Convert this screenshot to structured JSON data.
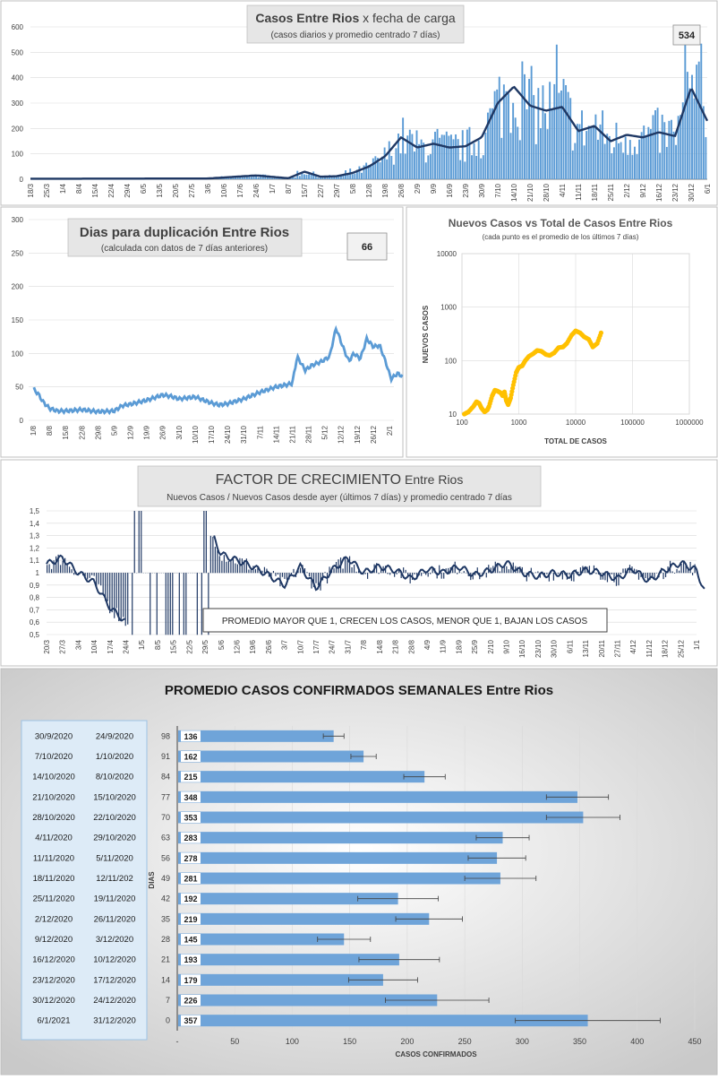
{
  "panel1": {
    "title_a": "Casos  Entre Rios",
    "title_b": " x fecha de carga",
    "subtitle": "(casos diarios y promedio  centrado 7 días)",
    "badge": "534"
  },
  "panel2": {
    "title": "Dias para duplicación Entre Rios",
    "subtitle": "(calculada con datos de 7 días anteriores)",
    "badge": "66"
  },
  "panel3": {
    "title": "Nuevos Casos vs Total de Casos Entre Rios",
    "subtitle": "(cada punto es el promedio de los últimos 7 días)",
    "xlabel": "TOTAL DE CASOS",
    "ylabel": "NUEVOS  CASOS"
  },
  "panel4": {
    "title_a": "FACTOR DE CRECIMIENTO",
    "title_b": " Entre Rios",
    "subtitle": "Nuevos Casos  / Nuevos Casos desde ayer (últimos 7 días) y promedio  centrado 7 días",
    "note": "PROMEDIO MAYOR QUE 1, CRECEN LOS CASOS, MENOR QUE 1, BAJAN LOS CASOS"
  },
  "panel5": {
    "title": "PROMEDIO CASOS CONFIRMADOS SEMANALES Entre Rios",
    "xlabel": "CASOS CONFIRMADOS",
    "ylabel": "DIAS",
    "date_pairs": [
      [
        "30/9/2020",
        "24/9/2020"
      ],
      [
        "7/10/2020",
        "1/10/2020"
      ],
      [
        "14/10/2020",
        "8/10/2020"
      ],
      [
        "21/10/2020",
        "15/10/2020"
      ],
      [
        "28/10/2020",
        "22/10/2020"
      ],
      [
        "4/11/2020",
        "29/10/2020"
      ],
      [
        "11/11/2020",
        "5/11/2020"
      ],
      [
        "18/11/2020",
        "12/11/202"
      ],
      [
        "25/11/2020",
        "19/11/2020"
      ],
      [
        "2/12/2020",
        "26/11/2020"
      ],
      [
        "9/12/2020",
        "3/12/2020"
      ],
      [
        "16/12/2020",
        "10/12/2020"
      ],
      [
        "23/12/2020",
        "17/12/2020"
      ],
      [
        "30/12/2020",
        "24/12/2020"
      ],
      [
        "6/1/2021",
        "31/12/2020"
      ]
    ]
  },
  "chart_data": [
    {
      "type": "bar",
      "title": "Casos  Entre Rios x fecha de carga",
      "subtitle": "(casos diarios y promedio  centrado 7 días)",
      "annotation": "534",
      "ylim": [
        0,
        600
      ],
      "yticks": [
        0,
        100,
        200,
        300,
        400,
        500,
        600
      ],
      "x_ticklabels": [
        "18/3",
        "25/3",
        "1/4",
        "8/4",
        "15/4",
        "22/4",
        "29/4",
        "6/5",
        "13/5",
        "20/5",
        "27/5",
        "3/6",
        "10/6",
        "17/6",
        "24/6",
        "1/7",
        "8/7",
        "15/7",
        "22/7",
        "29/7",
        "5/8",
        "12/8",
        "19/8",
        "26/8",
        "2/9",
        "9/9",
        "16/9",
        "23/9",
        "30/9",
        "7/10",
        "14/10",
        "21/10",
        "28/10",
        "4/11",
        "11/11",
        "18/11",
        "25/11",
        "2/12",
        "9/12",
        "16/12",
        "23/12",
        "30/12",
        "6/1"
      ],
      "series": [
        {
          "kind": "bars-daily",
          "color": "#5b9bd5"
        },
        {
          "kind": "line-7day-avg",
          "color": "#1f3864"
        }
      ],
      "avg_keypoints_x_ticklabel_index": [
        0,
        11,
        14,
        16,
        17,
        18,
        19,
        20,
        21,
        22,
        23,
        24,
        25,
        26,
        27,
        28,
        29,
        30,
        31,
        32,
        33,
        34,
        35,
        36,
        37,
        38,
        39,
        40,
        41,
        42
      ],
      "avg_keypoints_y": [
        2,
        3,
        15,
        4,
        30,
        10,
        12,
        25,
        50,
        90,
        165,
        125,
        140,
        125,
        130,
        165,
        300,
        365,
        290,
        270,
        285,
        190,
        210,
        150,
        175,
        165,
        185,
        170,
        360,
        230
      ],
      "grid": true
    },
    {
      "type": "line",
      "title": "Dias para duplicación Entre Rios",
      "subtitle": "(calculada con datos de 7 días anteriores)",
      "annotation": "66",
      "ylim": [
        0,
        300
      ],
      "yticks": [
        0,
        50,
        100,
        150,
        200,
        250,
        300
      ],
      "x_ticklabels": [
        "1/8",
        "8/8",
        "15/8",
        "22/8",
        "29/8",
        "5/9",
        "12/9",
        "19/9",
        "26/9",
        "3/10",
        "10/10",
        "17/10",
        "24/10",
        "31/10",
        "7/11",
        "14/11",
        "21/11",
        "28/11",
        "5/12",
        "12/12",
        "19/12",
        "26/12",
        "2/1"
      ],
      "x_index": [
        0,
        0.3,
        0.6,
        1,
        1.5,
        2,
        3,
        4,
        5,
        5.5,
        6,
        7,
        8,
        8.5,
        9,
        10,
        11,
        11.5,
        12,
        13,
        14,
        15,
        16,
        16.3,
        16.8,
        17.2,
        17.8,
        18.3,
        18.7,
        19.2,
        19.5,
        19.8,
        20.2,
        20.6,
        21,
        21.4,
        21.8,
        22.1,
        22.5,
        22.8
      ],
      "values": [
        47,
        40,
        28,
        18,
        14,
        14,
        16,
        13,
        14,
        22,
        24,
        30,
        38,
        36,
        32,
        35,
        26,
        23,
        25,
        32,
        42,
        50,
        55,
        95,
        75,
        82,
        88,
        95,
        138,
        105,
        88,
        100,
        92,
        122,
        110,
        112,
        85,
        62,
        70,
        66
      ],
      "color": "#5b9bd5",
      "grid": true
    },
    {
      "type": "scatter",
      "title": "Nuevos Casos vs Total de Casos Entre Rios",
      "subtitle": "(cada punto es el promedio de los últimos 7 días)",
      "xlabel": "TOTAL DE CASOS",
      "ylabel": "NUEVOS  CASOS",
      "x_scale": "log",
      "y_scale": "log",
      "xlim": [
        100,
        1000000
      ],
      "ylim": [
        10,
        10000
      ],
      "x_ticklabels": [
        "100",
        "1000",
        "10000",
        "100000",
        "1000000"
      ],
      "y_ticklabels": [
        "10",
        "100",
        "1000",
        "10000"
      ],
      "x": [
        110,
        130,
        160,
        180,
        200,
        220,
        250,
        280,
        300,
        340,
        380,
        420,
        480,
        520,
        560,
        600,
        650,
        720,
        800,
        900,
        1000,
        1150,
        1300,
        1500,
        1800,
        2100,
        2500,
        3000,
        3500,
        4200,
        5000,
        6000,
        7000,
        8500,
        10000,
        12000,
        14000,
        17000,
        20000,
        24000,
        28000
      ],
      "y": [
        10,
        11,
        14,
        17,
        16,
        13,
        11,
        12,
        14,
        22,
        28,
        27,
        25,
        22,
        26,
        18,
        15,
        20,
        35,
        60,
        75,
        80,
        100,
        120,
        135,
        155,
        150,
        130,
        125,
        140,
        175,
        180,
        210,
        300,
        360,
        330,
        280,
        250,
        180,
        210,
        330
      ],
      "color": "#ffc000",
      "grid": true
    },
    {
      "type": "bar",
      "title": "FACTOR DE CRECIMIENTO Entre Rios",
      "subtitle": "Nuevos Casos  / Nuevos Casos desde ayer (últimos 7 días) y promedio  centrado 7 días",
      "annotation": "PROMEDIO MAYOR QUE 1, CRECEN LOS CASOS, MENOR QUE 1, BAJAN LOS CASOS",
      "ylim": [
        0.5,
        1.5
      ],
      "yticks": [
        "0,5",
        "0,6",
        "0,7",
        "0,8",
        "0,9",
        "1",
        "1,1",
        "1,2",
        "1,3",
        "1,4",
        "1,5"
      ],
      "x_ticklabels": [
        "20/3",
        "27/3",
        "3/4",
        "10/4",
        "17/4",
        "24/4",
        "1/5",
        "8/5",
        "15/5",
        "22/5",
        "29/5",
        "5/6",
        "12/6",
        "19/6",
        "26/6",
        "3/7",
        "10/7",
        "17/7",
        "24/7",
        "31/7",
        "7/8",
        "14/8",
        "21/8",
        "28/8",
        "4/9",
        "11/9",
        "18/9",
        "25/9",
        "2/10",
        "9/10",
        "16/10",
        "23/10",
        "30/10",
        "6/11",
        "13/11",
        "20/11",
        "27/11",
        "4/12",
        "11/12",
        "18/12",
        "25/12",
        "1/1"
      ],
      "baseline": 1,
      "series": [
        {
          "kind": "bars-daily",
          "color": "#1f3864"
        },
        {
          "kind": "line-7day-avg",
          "color": "#1f3864"
        }
      ],
      "avg_keypoints_x_ticklabel_index": [
        0,
        1,
        2,
        3,
        4,
        5,
        10.5,
        11,
        12,
        13,
        14,
        15,
        16,
        17,
        18,
        19,
        20,
        21,
        22,
        23,
        24,
        25,
        26,
        27,
        28,
        29,
        30,
        31,
        32,
        33,
        34,
        35,
        36,
        37,
        38,
        39,
        40,
        41,
        41.5
      ],
      "avg_keypoints_y": [
        1.07,
        1.12,
        1.0,
        0.92,
        0.72,
        0.6,
        1.3,
        1.15,
        1.1,
        1.05,
        0.98,
        0.9,
        1.05,
        0.88,
        1.02,
        1.12,
        1.0,
        1.05,
        1.02,
        0.95,
        1.03,
        1.0,
        1.05,
        0.98,
        1.02,
        1.08,
        1.0,
        0.97,
        1.0,
        0.98,
        1.02,
        1.0,
        0.95,
        1.03,
        0.93,
        1.02,
        1.08,
        1.02,
        0.85
      ],
      "grid": true
    },
    {
      "type": "bar",
      "orientation": "horizontal",
      "title": "PROMEDIO CASOS CONFIRMADOS SEMANALES Entre Rios",
      "xlabel": "CASOS CONFIRMADOS",
      "ylabel": "DIAS",
      "categories": [
        "98",
        "91",
        "84",
        "77",
        "70",
        "63",
        "56",
        "49",
        "42",
        "35",
        "28",
        "21",
        "14",
        "7",
        "0"
      ],
      "values": [
        136,
        162,
        215,
        348,
        353,
        283,
        278,
        281,
        192,
        219,
        145,
        193,
        179,
        226,
        357
      ],
      "error": [
        9,
        11,
        18,
        27,
        32,
        23,
        25,
        31,
        35,
        29,
        23,
        35,
        30,
        45,
        63
      ],
      "xlim": [
        0,
        450
      ],
      "x_ticklabels": [
        "-",
        "50",
        "100",
        "150",
        "200",
        "250",
        "300",
        "350",
        "400",
        "450"
      ],
      "color": "#6fa4d9",
      "grid": true
    }
  ]
}
